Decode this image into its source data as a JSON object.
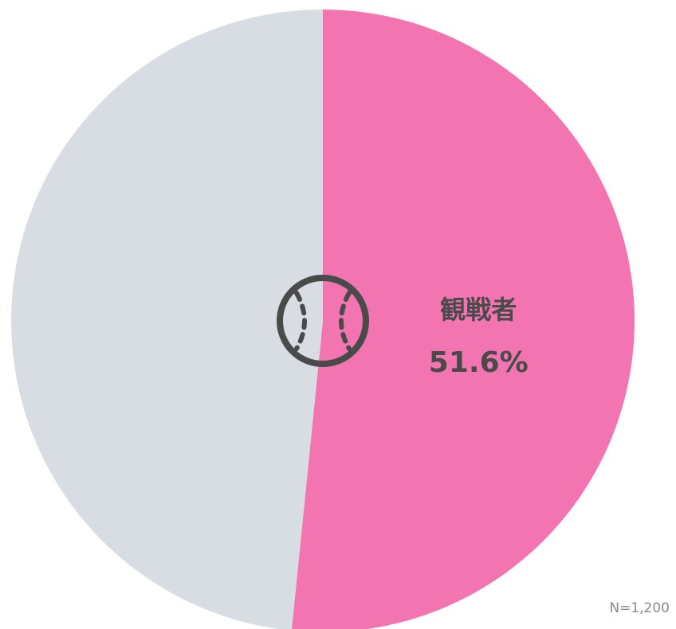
{
  "chart_data": {
    "type": "pie",
    "categories": [
      "観戦者",
      null
    ],
    "values": [
      51.6,
      48.4
    ],
    "value_labels": [
      "51.6%",
      null
    ],
    "colors": [
      "#f274b1",
      "#d8dde3"
    ],
    "start_angle": 0,
    "direction": "clockwise",
    "annotation": "N=1,200"
  }
}
